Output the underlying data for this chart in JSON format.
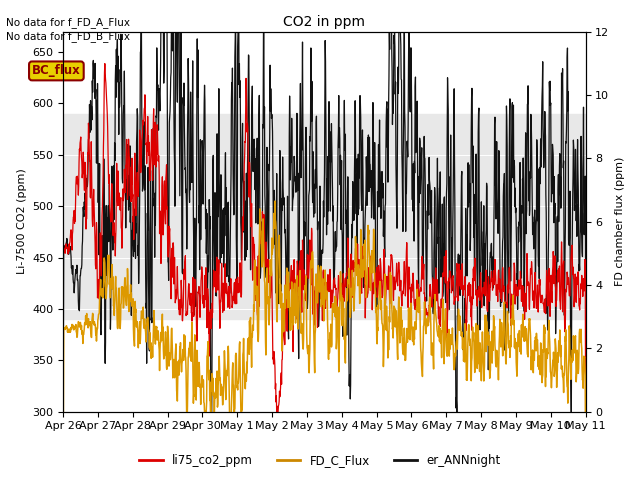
{
  "title": "CO2 in ppm",
  "ylabel_left": "Li-7500 CO2 (ppm)",
  "ylabel_right": "FD chamber flux (ppm)",
  "ylim_left": [
    300,
    670
  ],
  "ylim_right": [
    0,
    12
  ],
  "yticks_left": [
    300,
    350,
    400,
    450,
    500,
    550,
    600,
    650
  ],
  "yticks_right": [
    0,
    2,
    4,
    6,
    8,
    10,
    12
  ],
  "annotations": [
    "No data for f_FD_A_Flux",
    "No data for f_FD_B_Flux"
  ],
  "legend_label_flux": "BC_flux",
  "legend_entries": [
    "li75_co2_ppm",
    "FD_C_Flux",
    "er_ANNnight"
  ],
  "legend_colors": [
    "#dd0000",
    "#cc8800",
    "#111111"
  ],
  "line_colors": {
    "li75": "#dd0000",
    "fd_c": "#dd9900",
    "ann": "#111111"
  },
  "bg_band_color": "#e8e8e8",
  "bg_band_ylim": [
    390,
    590
  ],
  "xtick_labels": [
    "Apr 26",
    "Apr 27",
    "Apr 28",
    "Apr 29",
    "Apr 30",
    "May 1",
    "May 2",
    "May 3",
    "May 4",
    "May 5",
    "May 6",
    "May 7",
    "May 8",
    "May 9",
    "May 10",
    "May 11"
  ],
  "n_points": 1500,
  "xstart": 0,
  "xend": 15
}
